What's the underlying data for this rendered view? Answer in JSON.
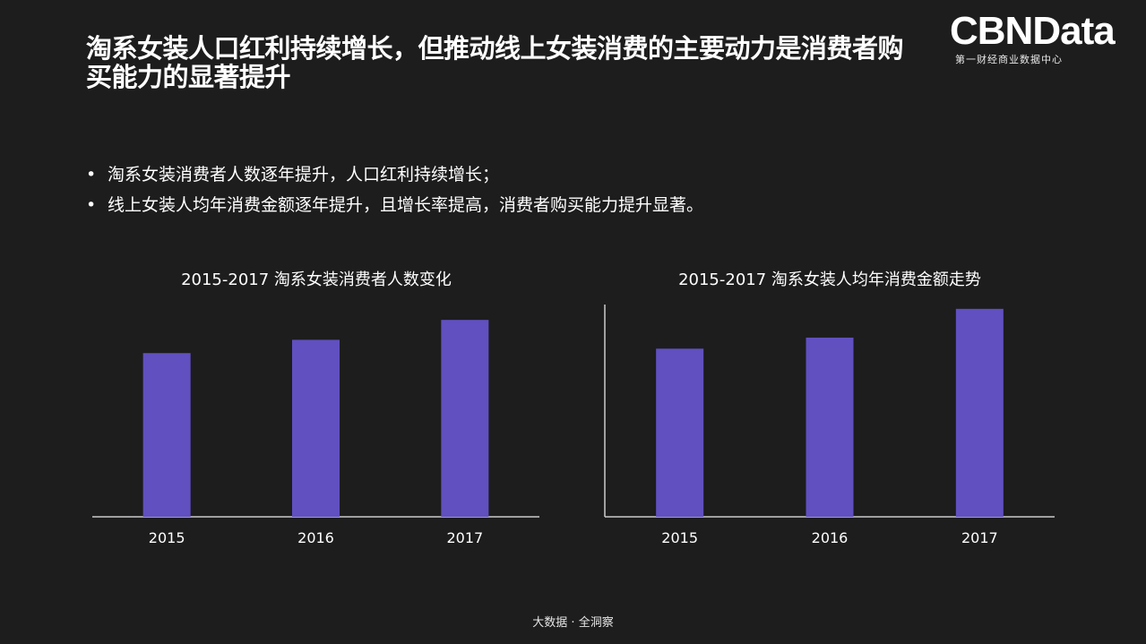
{
  "header": {
    "title": "淘系女装人口红利持续增长，但推动线上女装消费的主要动力是消费者购买能力的显著提升",
    "logo_main": "CBNData",
    "logo_sub": "第一财经商业数据中心"
  },
  "bullets": [
    "淘系女装消费者人数逐年提升，人口红利持续增长；",
    "线上女装人均年消费金额逐年提升，且增长率提高，消费者购买能力提升显著。"
  ],
  "bullet_glyph": "•",
  "footer": "大数据 · 全洞察",
  "colors": {
    "background": "#1d1d1d",
    "bar": "#6050c0",
    "axis": "#cccccc"
  },
  "chart_data": [
    {
      "type": "bar",
      "title": "2015-2017  淘系女装消费者人数变化",
      "categories": [
        "2015",
        "2016",
        "2017"
      ],
      "values": [
        0.74,
        0.8,
        0.89
      ],
      "ylim": [
        0,
        1
      ],
      "y_axis_visible": false,
      "grid": false,
      "legend": "none"
    },
    {
      "type": "bar",
      "title": "2015-2017  淘系女装人均年消费金额走势",
      "categories": [
        "2015",
        "2016",
        "2017"
      ],
      "values": [
        0.76,
        0.81,
        0.94
      ],
      "ylim": [
        0,
        1
      ],
      "y_axis_visible": true,
      "grid": false,
      "legend": "none"
    }
  ]
}
